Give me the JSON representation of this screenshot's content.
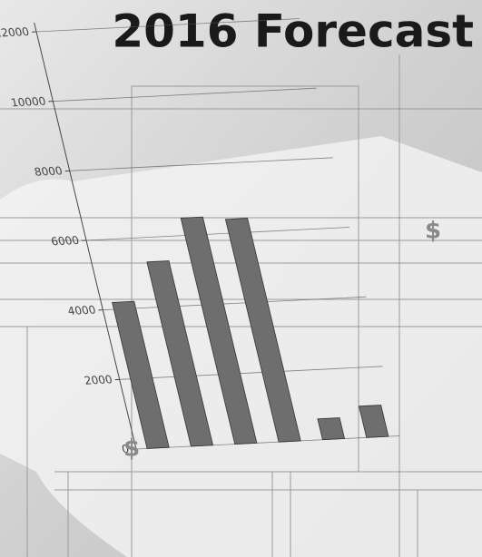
{
  "chart_data": {
    "type": "bar",
    "title": "2016 Forecast",
    "categories": [
      null,
      null,
      null,
      null,
      null,
      null
    ],
    "values": [
      4200,
      5300,
      6500,
      6400,
      600,
      900
    ],
    "color": "#6e6e6e",
    "ylim": [
      0,
      12000
    ],
    "yticks": [
      0,
      2000,
      4000,
      6000,
      8000,
      10000,
      12000
    ],
    "grid": true,
    "annotations": [
      "$",
      "$"
    ]
  }
}
